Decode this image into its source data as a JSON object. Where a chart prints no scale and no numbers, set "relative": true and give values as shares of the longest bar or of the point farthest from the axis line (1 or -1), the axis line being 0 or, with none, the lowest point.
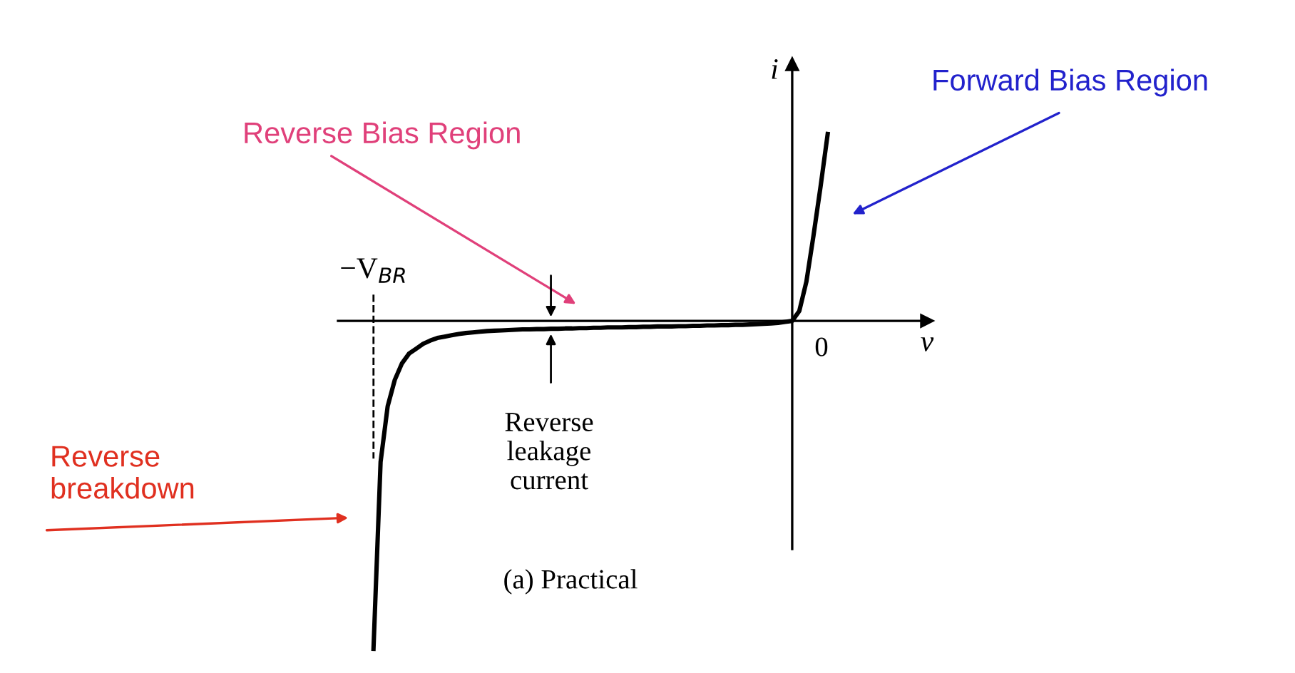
{
  "chart_data": {
    "type": "line",
    "relative": true,
    "xlabel": "v",
    "ylabel": "i",
    "color": "#000000",
    "categories": [
      null,
      null,
      null,
      null,
      null,
      null,
      null,
      null,
      null,
      null,
      null,
      null,
      null,
      null,
      null,
      null,
      null,
      null,
      null,
      null,
      null,
      null,
      null,
      null,
      null,
      null,
      null,
      null,
      null,
      null,
      null,
      null,
      null,
      null,
      null,
      null,
      null,
      null,
      null,
      null,
      null,
      null,
      null,
      null,
      null,
      null,
      null,
      null,
      null,
      null,
      null,
      null,
      null,
      null,
      null,
      null,
      null,
      null,
      null,
      null,
      null,
      null,
      null,
      null,
      null
    ],
    "values": [
      -1,
      -0.43,
      -0.26,
      -0.18,
      -0.13,
      -0.1,
      -0.085,
      -0.07,
      -0.06,
      -0.052,
      -0.048,
      -0.044,
      -0.04,
      -0.037,
      -0.035,
      -0.033,
      -0.031,
      -0.03,
      -0.029,
      -0.028,
      -0.027,
      -0.026,
      -0.026,
      -0.025,
      -0.025,
      -0.024,
      -0.024,
      -0.023,
      -0.023,
      -0.022,
      -0.022,
      -0.021,
      -0.021,
      -0.02,
      -0.02,
      -0.02,
      -0.019,
      -0.019,
      -0.018,
      -0.018,
      -0.017,
      -0.017,
      -0.017,
      -0.016,
      -0.016,
      -0.015,
      -0.015,
      -0.014,
      -0.014,
      -0.013,
      -0.013,
      -0.012,
      -0.012,
      -0.011,
      -0.01,
      -0.009,
      -0.008,
      -0.006,
      -0.003,
      0,
      0.03,
      0.12,
      0.26,
      0.41,
      0.57
    ],
    "annotations": [
      "0",
      "Reverse Bias Region",
      "Forward Bias Region",
      "Reverse\nbreakdown",
      "Reverse\nleakage\ncurrent",
      "(a) Practical",
      "−V$_{BR}$"
    ]
  }
}
